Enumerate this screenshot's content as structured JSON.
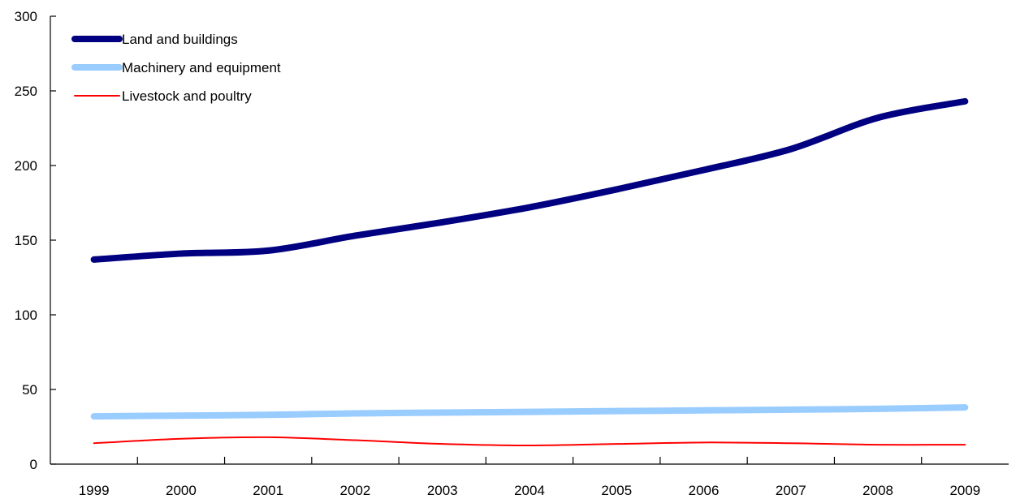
{
  "chart_data": {
    "type": "line",
    "title": "",
    "xlabel": "",
    "ylabel": "",
    "categories": [
      "1999",
      "2000",
      "2001",
      "2002",
      "2003",
      "2004",
      "2005",
      "2006",
      "2007",
      "2008",
      "2009"
    ],
    "ylim": [
      0,
      300
    ],
    "yticks": [
      0,
      50,
      100,
      150,
      200,
      250,
      300
    ],
    "grid": false,
    "legend_position": "top-left",
    "series": [
      {
        "name": "Land and buildings",
        "color": "#000080",
        "values": [
          137,
          141,
          143,
          153,
          162,
          172,
          184,
          197,
          211,
          232,
          243
        ]
      },
      {
        "name": "Machinery and equipment",
        "color": "#99CCFF",
        "values": [
          32,
          32.5,
          33,
          34,
          34.5,
          35,
          35.5,
          36,
          36.5,
          37,
          38
        ]
      },
      {
        "name": "Livestock and poultry",
        "color": "#FF0000",
        "values": [
          14,
          17,
          18,
          16,
          13.5,
          12.5,
          13.5,
          14.5,
          14,
          13,
          13
        ]
      }
    ]
  }
}
